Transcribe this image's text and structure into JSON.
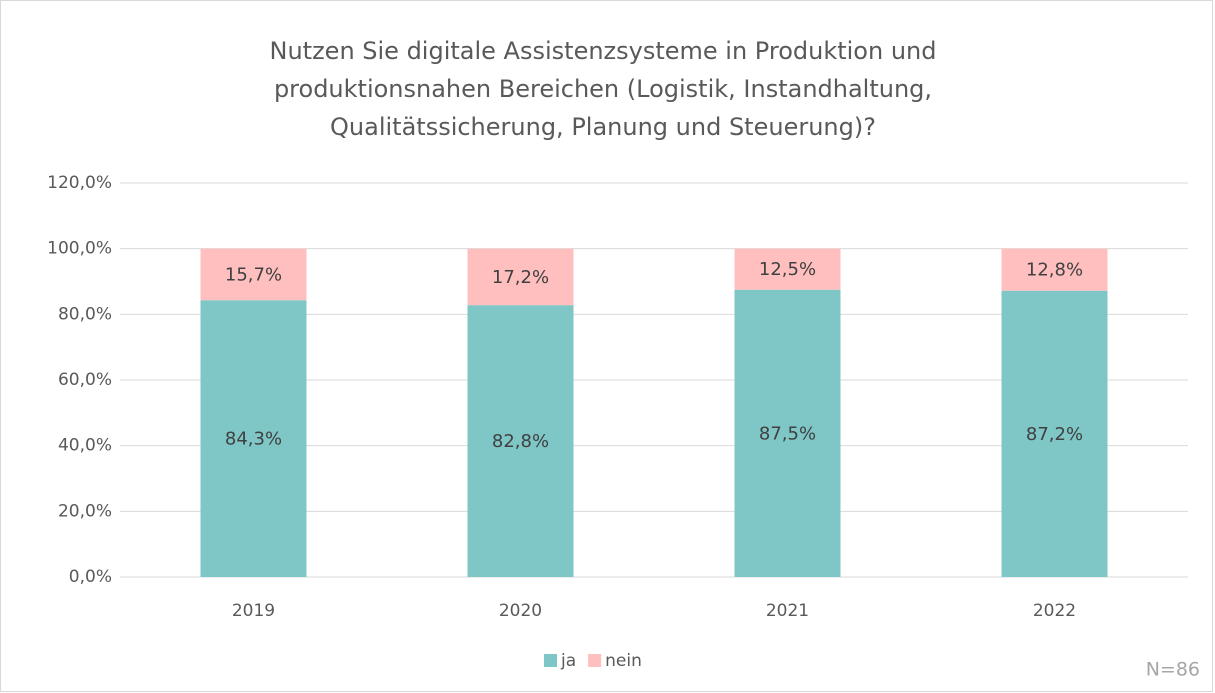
{
  "chart_data": {
    "type": "stacked_bar",
    "title": [
      "Nutzen Sie digitale Assistenzsysteme in Produktion und",
      "produktionsnahen Bereichen (Logistik, Instandhaltung,",
      "Qualitätssicherung, Planung und Steuerung)?"
    ],
    "categories": [
      "2019",
      "2020",
      "2021",
      "2022"
    ],
    "series": [
      {
        "name": "ja",
        "color": "#7fc6c6",
        "values": [
          84.3,
          82.8,
          87.5,
          87.2
        ],
        "value_labels": [
          "84,3%",
          "82,8%",
          "87,5%",
          "87,2%"
        ]
      },
      {
        "name": "nein",
        "color": "#ffbfbf",
        "values": [
          15.7,
          17.2,
          12.5,
          12.8
        ],
        "value_labels": [
          "15,7%",
          "17,2%",
          "12,5%",
          "12,8%"
        ]
      }
    ],
    "ylim": [
      0,
      120
    ],
    "yticks": [
      {
        "value": 0,
        "label": "0,0%"
      },
      {
        "value": 20,
        "label": "20,0%"
      },
      {
        "value": 40,
        "label": "40,0%"
      },
      {
        "value": 60,
        "label": "60,0%"
      },
      {
        "value": 80,
        "label": "80,0%"
      },
      {
        "value": 100,
        "label": "100,0%"
      },
      {
        "value": 120,
        "label": "120,0%"
      }
    ],
    "grid": true,
    "legend": "bottom",
    "annotations": [
      "N=86"
    ]
  }
}
